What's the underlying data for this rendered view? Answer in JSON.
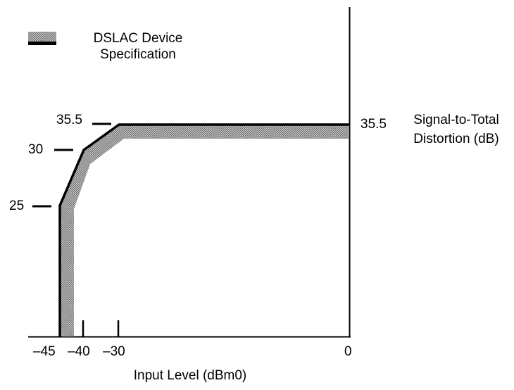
{
  "legend": {
    "line1": "DSLAC Device",
    "line2": "Specification"
  },
  "axes": {
    "ylabel_line1": "Signal-to-Total",
    "ylabel_line2": "Distortion (dB)",
    "xlabel": "Input Level (dBm0)"
  },
  "colors": {
    "line": "#000000",
    "band_fill": "#a8a8a8"
  },
  "chart_data": {
    "type": "line",
    "title": "",
    "xlabel": "Input Level (dBm0)",
    "ylabel": "Signal-to-Total Distortion (dB)",
    "xlim": [
      -45,
      0
    ],
    "x_ticks": [
      -45,
      -40,
      -30,
      0
    ],
    "x_tick_labels": [
      "–45",
      "–40",
      "–30",
      "0"
    ],
    "y_ticks": [
      25,
      30,
      35.5
    ],
    "y_tick_labels": [
      "25",
      "30",
      "35.5"
    ],
    "right_axis_label": "35.5",
    "series": [
      {
        "name": "DSLAC Device Specification",
        "points": [
          [
            -45,
            15
          ],
          [
            -45,
            25
          ],
          [
            -40,
            30
          ],
          [
            -35,
            35.5
          ],
          [
            0,
            35.5
          ]
        ]
      }
    ],
    "grid": false,
    "legend_position": "top-left"
  }
}
